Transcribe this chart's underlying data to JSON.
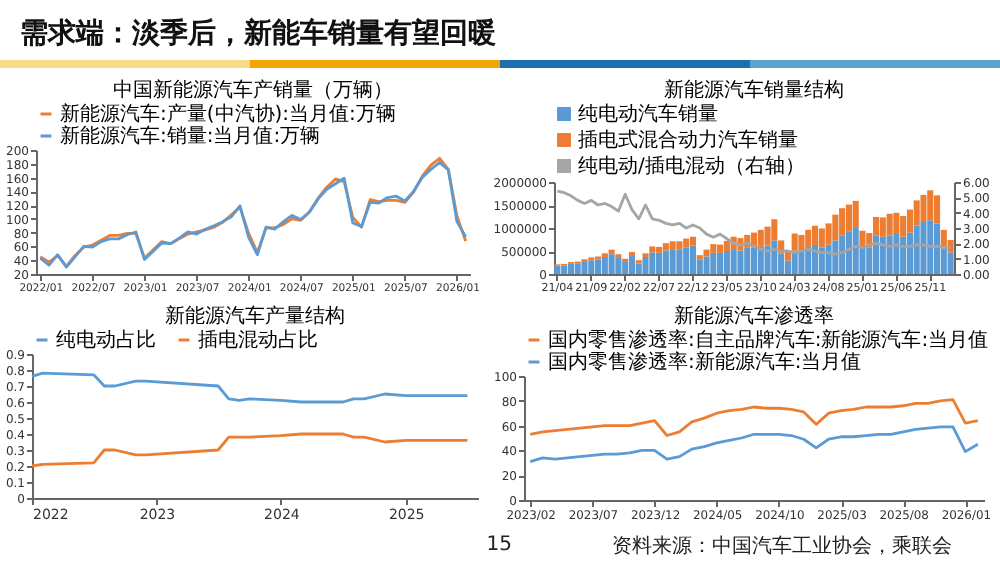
{
  "chart_data": [
    {
      "type": "other",
      "title": "需求端：淡季后，新能车销量有望回暖"
    },
    {
      "type": "line",
      "title": "中国新能源汽车产销量（万辆）",
      "legend": "top",
      "ylim": [
        20,
        200
      ],
      "yticks": [
        20,
        40,
        60,
        80,
        100,
        120,
        140,
        160,
        180,
        200
      ],
      "categories": [
        "2022/01",
        null,
        null,
        null,
        null,
        null,
        "2022/07",
        null,
        null,
        null,
        null,
        null,
        "2023/01",
        null,
        null,
        null,
        null,
        null,
        "2023/07",
        null,
        null,
        null,
        null,
        null,
        "2024/01",
        null,
        null,
        null,
        null,
        null,
        "2024/07",
        null,
        null,
        null,
        null,
        null,
        "2025/01",
        null,
        null,
        null,
        null,
        null,
        "2025/07",
        null,
        null,
        null,
        null,
        null,
        "2026/01",
        null
      ],
      "series": [
        {
          "name": "新能源汽车:产量(中汽协):当月值:万辆",
          "color": "#ed7d31",
          "values": [
            45,
            37,
            47,
            31,
            47,
            59,
            62,
            69,
            76,
            76,
            79,
            79,
            43,
            55,
            67,
            64,
            71,
            78,
            81,
            84,
            88,
            95,
            106,
            117,
            79,
            51,
            87,
            87,
            92,
            100,
            98,
            110,
            130,
            146,
            158,
            154,
            102,
            88,
            128,
            125,
            127,
            127,
            124,
            139,
            162,
            178,
            188,
            172,
            104,
            68
          ]
        },
        {
          "name": "新能源汽车:销量:当月值:万辆",
          "color": "#5b9bd5",
          "values": [
            43,
            33,
            48,
            30,
            45,
            60,
            59,
            67,
            71,
            71,
            77,
            81,
            41,
            53,
            65,
            64,
            72,
            81,
            78,
            85,
            90,
            96,
            103,
            119,
            73,
            48,
            88,
            85,
            96,
            105,
            99,
            110,
            129,
            143,
            151,
            159,
            94,
            89,
            124,
            123,
            131,
            133,
            126,
            140,
            160,
            172,
            182,
            171,
            96,
            74
          ]
        }
      ]
    },
    {
      "type": "bar",
      "title": "新能源汽车销量结构",
      "stacked": true,
      "legend": "top",
      "ylim": [
        0,
        2000000
      ],
      "yticks": [
        0,
        500000,
        1000000,
        1500000,
        2000000
      ],
      "y2lim": [
        0,
        6
      ],
      "y2ticks": [
        {
          "value": 0,
          "label": "0.00"
        },
        {
          "value": 1,
          "label": "1.00"
        },
        {
          "value": 2,
          "label": "2.00"
        },
        {
          "value": 3,
          "label": "3.00"
        },
        {
          "value": 4,
          "label": "4.00"
        },
        {
          "value": 5,
          "label": "5.00"
        },
        {
          "value": 6,
          "label": "6.00"
        }
      ],
      "categories": [
        "21/04",
        null,
        null,
        null,
        null,
        "21/09",
        null,
        null,
        null,
        null,
        "22/02",
        null,
        null,
        null,
        null,
        "22/07",
        null,
        null,
        null,
        null,
        "22/12",
        null,
        null,
        null,
        null,
        "23/05",
        null,
        null,
        null,
        null,
        "23/10",
        null,
        null,
        null,
        null,
        "24/03",
        null,
        null,
        null,
        null,
        "24/08",
        null,
        null,
        null,
        null,
        "25/01",
        null,
        null,
        null,
        null,
        "25/06",
        null,
        null,
        null,
        null,
        "25/11",
        null,
        null,
        null
      ],
      "series": [
        {
          "name": "纯电动汽车销量",
          "color": "#5b9bd5",
          "values": [
            180000,
            180000,
            220000,
            220000,
            260000,
            300000,
            310000,
            370000,
            430000,
            350000,
            280000,
            390000,
            230000,
            370000,
            470000,
            460000,
            510000,
            540000,
            540000,
            580000,
            620000,
            310000,
            380000,
            460000,
            460000,
            500000,
            540000,
            510000,
            570000,
            580000,
            590000,
            620000,
            730000,
            440000,
            290000,
            510000,
            510000,
            590000,
            630000,
            580000,
            640000,
            730000,
            830000,
            930000,
            1020000,
            590000,
            580000,
            830000,
            810000,
            840000,
            870000,
            810000,
            900000,
            1050000,
            1130000,
            1170000,
            1100000,
            600000,
            470000
          ]
        },
        {
          "name": "插电式混合动力汽车销量",
          "color": "#ed7d31",
          "values": [
            30000,
            40000,
            40000,
            50000,
            60000,
            60000,
            70000,
            80000,
            100000,
            80000,
            50000,
            90000,
            70000,
            80000,
            130000,
            130000,
            160000,
            170000,
            170000,
            190000,
            190000,
            100000,
            150000,
            190000,
            180000,
            220000,
            270000,
            270000,
            280000,
            320000,
            370000,
            410000,
            460000,
            290000,
            190000,
            370000,
            340000,
            370000,
            420000,
            410000,
            460000,
            560000,
            600000,
            580000,
            570000,
            350000,
            310000,
            410000,
            420000,
            470000,
            460000,
            450000,
            500000,
            550000,
            590000,
            650000,
            610000,
            360000,
            270000
          ]
        },
        {
          "name": "纯电动/插电混动（右轴）",
          "type": "line",
          "axis": "y2",
          "color": "#a5a5a5",
          "values": [
            5.4,
            5.3,
            5.1,
            4.8,
            4.6,
            4.8,
            4.5,
            4.6,
            4.4,
            4.1,
            5.2,
            4.2,
            3.6,
            4.5,
            3.6,
            3.5,
            3.3,
            3.2,
            3.3,
            3.0,
            3.2,
            3.0,
            2.6,
            2.4,
            2.6,
            2.3,
            2.0,
            1.9,
            2.0,
            1.8,
            1.6,
            1.5,
            1.6,
            1.5,
            1.5,
            1.4,
            1.5,
            1.6,
            1.5,
            1.4,
            1.4,
            1.3,
            1.4,
            1.6,
            1.8,
            1.7,
            1.9,
            2.0,
            1.9,
            1.8,
            1.9,
            1.8,
            1.8,
            1.9,
            1.9,
            1.8,
            1.8,
            1.7,
            1.7
          ]
        }
      ]
    },
    {
      "type": "line",
      "title": "新能源汽车产量结构",
      "legend": "top",
      "ylim": [
        0,
        0.9
      ],
      "yticks": [
        0,
        0.1,
        0.2,
        0.3,
        0.4,
        0.5,
        0.6,
        0.7,
        0.8,
        0.9
      ],
      "xlim": [
        "2022",
        "2025-08"
      ],
      "xticks": [
        "2022",
        "2023",
        "2024",
        "2025"
      ],
      "x": [
        "2022-01",
        "2022-02",
        "2022-07",
        "2022-08",
        "2022-09",
        "2022-11",
        "2022-12",
        "2023-07",
        "2023-08",
        "2023-09",
        "2023-10",
        "2024-01",
        "2024-03",
        "2024-07",
        "2024-08",
        "2024-09",
        "2024-11",
        "2025-01",
        "2025-07"
      ],
      "series": [
        {
          "name": "纯电动占比",
          "color": "#5b9bd5",
          "values": [
            0.76,
            0.78,
            0.77,
            0.7,
            0.7,
            0.73,
            0.73,
            0.7,
            0.62,
            0.61,
            0.62,
            0.61,
            0.6,
            0.6,
            0.62,
            0.62,
            0.65,
            0.64,
            0.64
          ]
        },
        {
          "name": "插电混动占比",
          "color": "#ed7d31",
          "values": [
            0.2,
            0.21,
            0.22,
            0.3,
            0.3,
            0.27,
            0.27,
            0.3,
            0.38,
            0.38,
            0.38,
            0.39,
            0.4,
            0.4,
            0.38,
            0.38,
            0.35,
            0.36,
            0.36
          ]
        }
      ]
    },
    {
      "type": "line",
      "title": "新能源汽车渗透率",
      "legend": "top",
      "ylim": [
        0,
        100
      ],
      "yticks": [
        0,
        20,
        40,
        60,
        80,
        100
      ],
      "categories": [
        "2023/02",
        null,
        null,
        null,
        null,
        "2023/07",
        null,
        null,
        null,
        null,
        "2023/12",
        null,
        null,
        null,
        null,
        "2024/05",
        null,
        null,
        null,
        null,
        "2024/10",
        null,
        null,
        null,
        null,
        "2025/03",
        null,
        null,
        null,
        null,
        "2025/08",
        null,
        null,
        null,
        null,
        "2026/01",
        null
      ],
      "series": [
        {
          "name": "国内零售渗透率:自主品牌汽车:新能源汽车:当月值",
          "color": "#ed7d31",
          "values": [
            53,
            55,
            56,
            57,
            58,
            59,
            60,
            60,
            60,
            62,
            64,
            52,
            55,
            63,
            66,
            70,
            72,
            73,
            75,
            74,
            74,
            73,
            71,
            61,
            70,
            72,
            73,
            75,
            75,
            75,
            76,
            78,
            78,
            80,
            81,
            62,
            64
          ]
        },
        {
          "name": "国内零售渗透率:新能源汽车:当月值",
          "color": "#5b9bd5",
          "values": [
            31,
            34,
            33,
            34,
            35,
            36,
            37,
            37,
            38,
            40,
            40,
            33,
            35,
            41,
            43,
            46,
            48,
            50,
            53,
            53,
            53,
            52,
            49,
            42,
            49,
            51,
            51,
            52,
            53,
            53,
            55,
            57,
            58,
            59,
            59,
            39,
            45
          ]
        }
      ]
    },
    {
      "type": "other",
      "annotations": [
        "15",
        "资料来源：中国汽车工业协会，乘联会"
      ]
    }
  ]
}
